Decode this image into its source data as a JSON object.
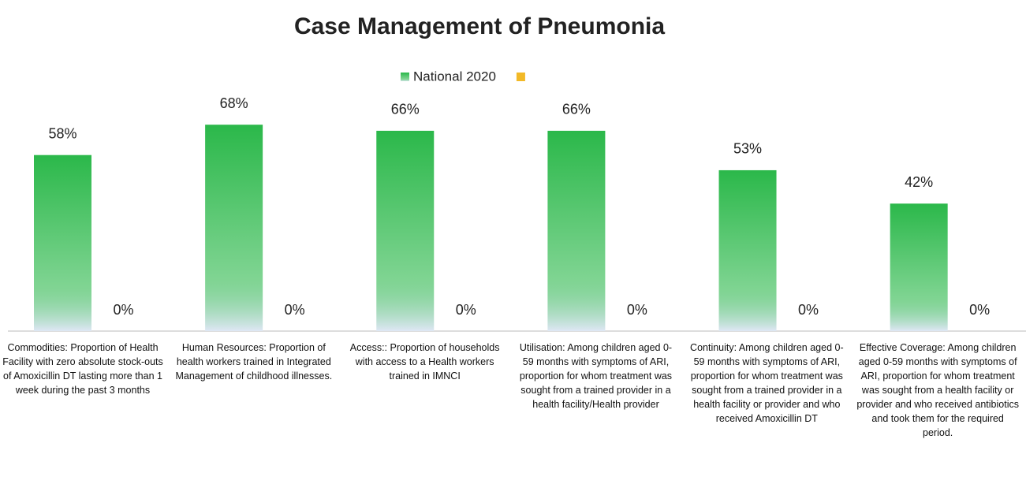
{
  "chart_data": {
    "type": "bar",
    "title": "Case Management of Pneumonia",
    "categories": [
      "Commodities: Proportion of Health Facility with zero absolute stock-outs of Amoxicillin DT lasting more than 1 week during the past 3 months",
      "Human Resources: Proportion of health workers trained in Integrated Management of childhood illnesses.",
      "Access:: Proportion of households with access to a Health workers trained in IMNCI",
      "Utilisation: Among children aged 0-59 months with symptoms of ARI, proportion for whom treatment was sought from a trained provider in a health facility/Health provider",
      "Continuity: Among children aged 0-59 months with symptoms of ARI, proportion for whom treatment was sought from a trained provider in a health facility or provider and who received Amoxicillin DT",
      "Effective Coverage: Among children aged 0-59 months with symptoms of ARI, proportion for whom treatment was sought from a health facility or provider and who received antibiotics and took them for the required period."
    ],
    "series": [
      {
        "name": "National 2020",
        "color": "#2bb84a",
        "values": [
          58,
          68,
          66,
          66,
          53,
          42
        ],
        "value_labels": [
          "58%",
          "68%",
          "66%",
          "66%",
          "53%",
          "42%"
        ]
      },
      {
        "name": null,
        "color": "#f2b927",
        "values": [
          0,
          0,
          0,
          0,
          0,
          0
        ],
        "value_labels": [
          "0%",
          "0%",
          "0%",
          "0%",
          "0%",
          "0%"
        ]
      }
    ],
    "legend": "top"
  }
}
